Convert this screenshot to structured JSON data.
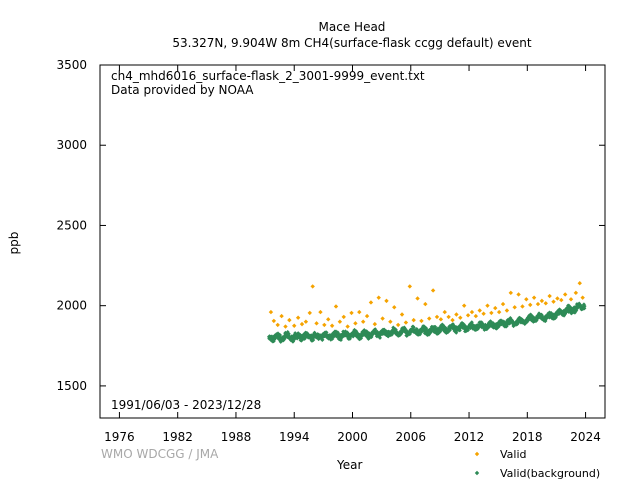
{
  "header": {
    "station": "Mace Head",
    "subtitle": "53.327N, 9.904W 8m     CH4(surface-flask ccgg default) event"
  },
  "annotations": {
    "file": "ch4_mhd6016_surface-flask_2_3001-9999_event.txt",
    "provider": "Data provided by NOAA",
    "date_range": "1991/06/03 - 2023/12/28",
    "credit": "WMO WDCGG / JMA"
  },
  "colors": {
    "valid": "#f5a300",
    "background": "#2e8b57"
  },
  "chart_data": {
    "type": "scatter",
    "xlabel": "Year",
    "ylabel": "ppb",
    "xlim": [
      1974,
      2026
    ],
    "ylim": [
      1300,
      3500
    ],
    "xticks": [
      "1976",
      "1982",
      "1988",
      "1994",
      "2000",
      "2006",
      "2012",
      "2018",
      "2024"
    ],
    "yticks": [
      "1500",
      "2000",
      "2500",
      "3000",
      "3500"
    ],
    "legend_position": "bottom-right",
    "grid": false,
    "series": [
      {
        "name": "Valid",
        "color": "#f5a300",
        "points": [
          [
            1991.6,
            1960
          ],
          [
            1991.9,
            1905
          ],
          [
            1992.3,
            1880
          ],
          [
            1992.7,
            1935
          ],
          [
            1993.1,
            1870
          ],
          [
            1993.5,
            1910
          ],
          [
            1994.0,
            1875
          ],
          [
            1994.4,
            1925
          ],
          [
            1994.8,
            1885
          ],
          [
            1995.2,
            1900
          ],
          [
            1995.6,
            1955
          ],
          [
            1995.9,
            2120
          ],
          [
            1996.3,
            1890
          ],
          [
            1996.7,
            1960
          ],
          [
            1997.1,
            1880
          ],
          [
            1997.5,
            1915
          ],
          [
            1997.9,
            1875
          ],
          [
            1998.3,
            1995
          ],
          [
            1998.7,
            1900
          ],
          [
            1999.1,
            1930
          ],
          [
            1999.5,
            1870
          ],
          [
            1999.9,
            1955
          ],
          [
            2000.3,
            1890
          ],
          [
            2000.7,
            1960
          ],
          [
            2001.1,
            1900
          ],
          [
            2001.5,
            1935
          ],
          [
            2001.9,
            2020
          ],
          [
            2002.3,
            1885
          ],
          [
            2002.7,
            2050
          ],
          [
            2003.1,
            1920
          ],
          [
            2003.5,
            2030
          ],
          [
            2003.9,
            1900
          ],
          [
            2004.3,
            1990
          ],
          [
            2004.7,
            1880
          ],
          [
            2005.1,
            1945
          ],
          [
            2005.5,
            1895
          ],
          [
            2005.9,
            2120
          ],
          [
            2006.3,
            1910
          ],
          [
            2006.7,
            2045
          ],
          [
            2007.1,
            1905
          ],
          [
            2007.5,
            2010
          ],
          [
            2007.9,
            1920
          ],
          [
            2008.3,
            2095
          ],
          [
            2008.7,
            1930
          ],
          [
            2009.1,
            1915
          ],
          [
            2009.5,
            1960
          ],
          [
            2009.9,
            1930
          ],
          [
            2010.3,
            1910
          ],
          [
            2010.7,
            1945
          ],
          [
            2011.1,
            1925
          ],
          [
            2011.5,
            2000
          ],
          [
            2011.9,
            1940
          ],
          [
            2012.3,
            1960
          ],
          [
            2012.7,
            1935
          ],
          [
            2013.1,
            1970
          ],
          [
            2013.5,
            1950
          ],
          [
            2013.9,
            2000
          ],
          [
            2014.3,
            1955
          ],
          [
            2014.7,
            1985
          ],
          [
            2015.1,
            1960
          ],
          [
            2015.5,
            2010
          ],
          [
            2015.9,
            1970
          ],
          [
            2016.3,
            2080
          ],
          [
            2016.7,
            1990
          ],
          [
            2017.1,
            2070
          ],
          [
            2017.5,
            1995
          ],
          [
            2017.9,
            2040
          ],
          [
            2018.3,
            2005
          ],
          [
            2018.7,
            2050
          ],
          [
            2019.1,
            2010
          ],
          [
            2019.5,
            2030
          ],
          [
            2019.9,
            2015
          ],
          [
            2020.3,
            2060
          ],
          [
            2020.7,
            2025
          ],
          [
            2021.1,
            2045
          ],
          [
            2021.5,
            2035
          ],
          [
            2021.9,
            2070
          ],
          [
            2022.5,
            2040
          ],
          [
            2023.0,
            2080
          ],
          [
            2023.4,
            2140
          ],
          [
            2023.7,
            2050
          ]
        ]
      },
      {
        "name": "Valid(background)",
        "color": "#2e8b57",
        "trend": {
          "x_start": 1991.4,
          "x_end": 2023.9,
          "nodes": [
            [
              1991.4,
              1800
            ],
            [
              1999.0,
              1815
            ],
            [
              2006.5,
              1840
            ],
            [
              2014.0,
              1875
            ],
            [
              2020.0,
              1930
            ],
            [
              2023.9,
              2000
            ]
          ],
          "spread": 22,
          "n": 1400
        }
      }
    ]
  }
}
